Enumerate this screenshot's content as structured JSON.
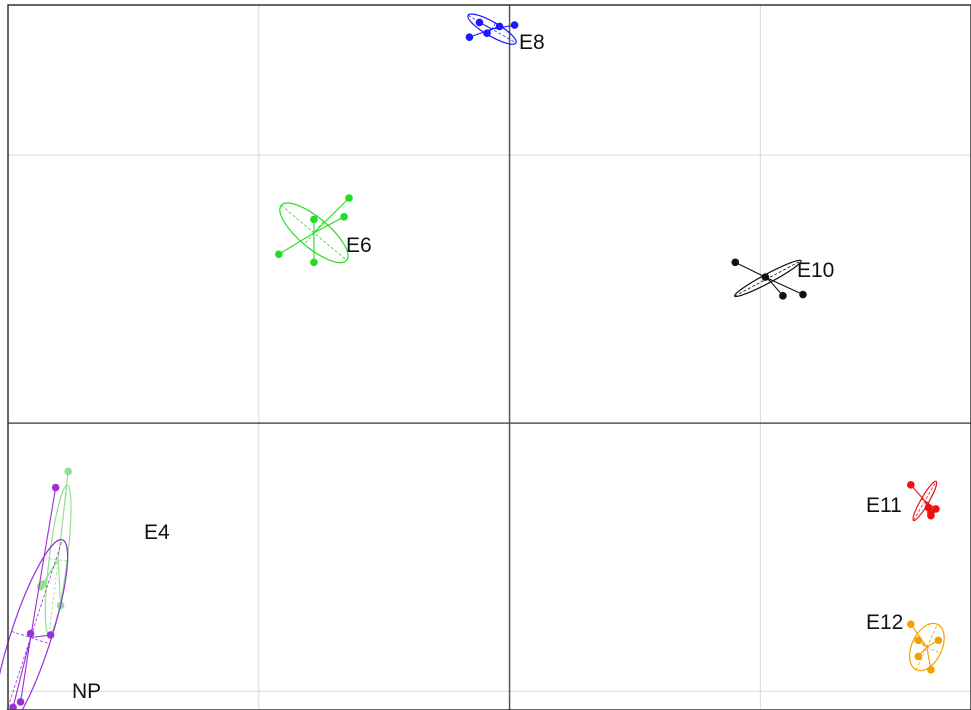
{
  "chart_data": {
    "type": "scatter",
    "title": "",
    "xlabel": "",
    "ylabel": "",
    "grid": true,
    "xlim": [
      -1,
      0.92
    ],
    "ylim": [
      -1.07,
      1.56
    ],
    "xgrid": [
      -0.5,
      0.5
    ],
    "ygrid": [
      1.0,
      -1.0
    ],
    "series": [
      {
        "name": "E8",
        "color": "#1a1aff",
        "points": [
          [
            -0.06,
            1.495
          ],
          [
            -0.08,
            1.44
          ],
          [
            -0.045,
            1.455
          ],
          [
            -0.02,
            1.48
          ],
          [
            0.01,
            1.485
          ]
        ],
        "ellipse": {
          "cx": -0.035,
          "cy": 1.47,
          "rx": 0.055,
          "ry": 0.014,
          "angle_deg": -30
        }
      },
      {
        "name": "E6",
        "color": "#22dd22",
        "points": [
          [
            -0.46,
            0.63
          ],
          [
            -0.39,
            0.6
          ],
          [
            -0.39,
            0.76
          ],
          [
            -0.33,
            0.77
          ],
          [
            -0.32,
            0.84
          ]
        ],
        "ellipse": {
          "cx": -0.39,
          "cy": 0.71,
          "rx": 0.085,
          "ry": 0.03,
          "angle_deg": -40
        }
      },
      {
        "name": "E10",
        "color": "#111111",
        "points": [
          [
            0.45,
            0.6
          ],
          [
            0.51,
            0.545
          ],
          [
            0.545,
            0.475
          ],
          [
            0.585,
            0.48
          ]
        ],
        "ellipse": {
          "cx": 0.515,
          "cy": 0.54,
          "rx": 0.075,
          "ry": 0.009,
          "angle_deg": 28
        }
      },
      {
        "name": "E11",
        "color": "#ee1111",
        "points": [
          [
            0.8,
            -0.23
          ],
          [
            0.835,
            -0.315
          ],
          [
            0.84,
            -0.335
          ],
          [
            0.84,
            -0.345
          ],
          [
            0.85,
            -0.32
          ]
        ],
        "ellipse": {
          "cx": 0.828,
          "cy": -0.29,
          "rx": 0.045,
          "ry": 0.008,
          "angle_deg": 60
        }
      },
      {
        "name": "E12",
        "color": "#f5a000",
        "points": [
          [
            0.8,
            -0.75
          ],
          [
            0.815,
            -0.81
          ],
          [
            0.855,
            -0.81
          ],
          [
            0.84,
            -0.92
          ],
          [
            0.815,
            -0.87
          ]
        ],
        "ellipse": {
          "cx": 0.832,
          "cy": -0.835,
          "rx": 0.05,
          "ry": 0.03,
          "angle_deg": 65
        }
      },
      {
        "name": "E4",
        "color": "#90e090",
        "points": [
          [
            -0.88,
            -0.18
          ],
          [
            -0.895,
            -0.68
          ],
          [
            -0.935,
            -0.61
          ],
          [
            -0.93,
            -0.6
          ]
        ],
        "ellipse": {
          "cx": -0.9,
          "cy": -0.51,
          "rx": 0.15,
          "ry": 0.018,
          "angle_deg": 83
        }
      },
      {
        "name": "NP",
        "color": "#9b30d9",
        "points": [
          [
            -0.905,
            -0.24
          ],
          [
            -0.975,
            -1.04
          ],
          [
            -0.99,
            -1.06
          ],
          [
            -0.955,
            -0.785
          ],
          [
            -0.915,
            -0.79
          ]
        ],
        "ellipse": {
          "cx": -0.955,
          "cy": -0.8,
          "rx": 0.205,
          "ry": 0.04,
          "angle_deg": 72
        }
      }
    ]
  },
  "labels": {
    "e8": "E8",
    "e6": "E6",
    "e10": "E10",
    "e11": "E11",
    "e12": "E12",
    "e4": "E4",
    "np": "NP"
  }
}
